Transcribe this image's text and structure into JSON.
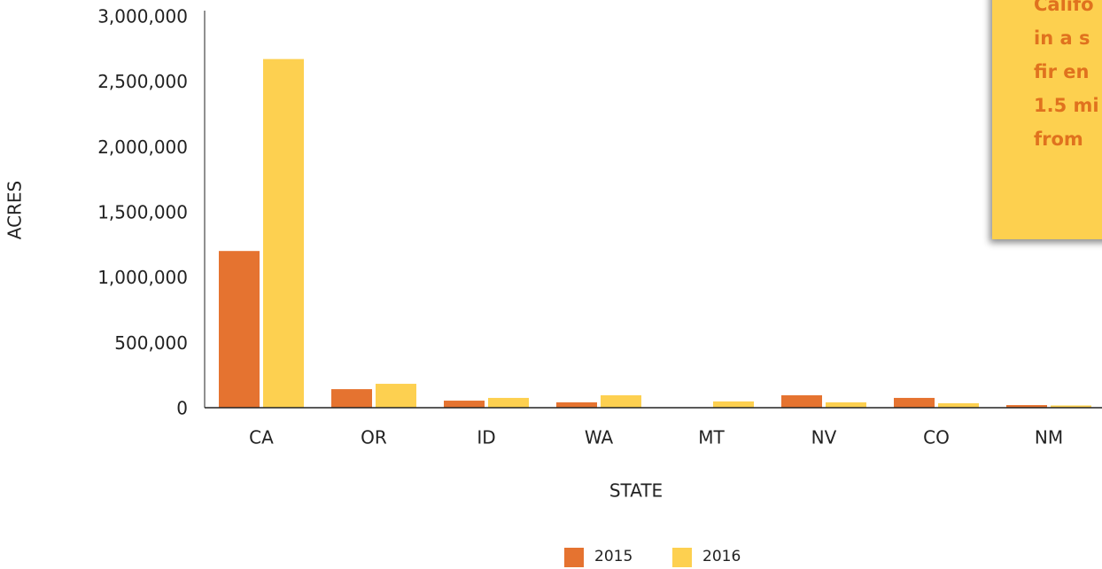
{
  "chart_data": {
    "type": "bar",
    "x_label": "STATE",
    "y_label": "ACRES",
    "categories": [
      "CA",
      "OR",
      "ID",
      "WA",
      "MT",
      "NV",
      "CO",
      "NM"
    ],
    "series": [
      {
        "name": "2015",
        "color": "#e57330",
        "values": [
          1200000,
          142000,
          54000,
          41000,
          0,
          95000,
          75000,
          20000
        ]
      },
      {
        "name": "2016",
        "color": "#fdd050",
        "values": [
          2670000,
          183000,
          75000,
          95000,
          48000,
          41000,
          34000,
          17000
        ]
      }
    ],
    "ylim": [
      0,
      3000000
    ],
    "yticks": [
      0,
      {
        "value": 500000,
        "label": "500,000"
      },
      {
        "value": 1000000,
        "label": "1,000,000"
      },
      {
        "value": 1500000,
        "label": "1,500,000"
      },
      {
        "value": 2000000,
        "label": "2,000,000"
      },
      {
        "value": 2500000,
        "label": "2,500,000"
      },
      {
        "value": 3000000,
        "label": "3,000,000"
      }
    ],
    "annotation": [
      "Califo",
      "in a s",
      "fir en",
      "1.5 mi",
      "from"
    ],
    "legend": "bottom"
  }
}
